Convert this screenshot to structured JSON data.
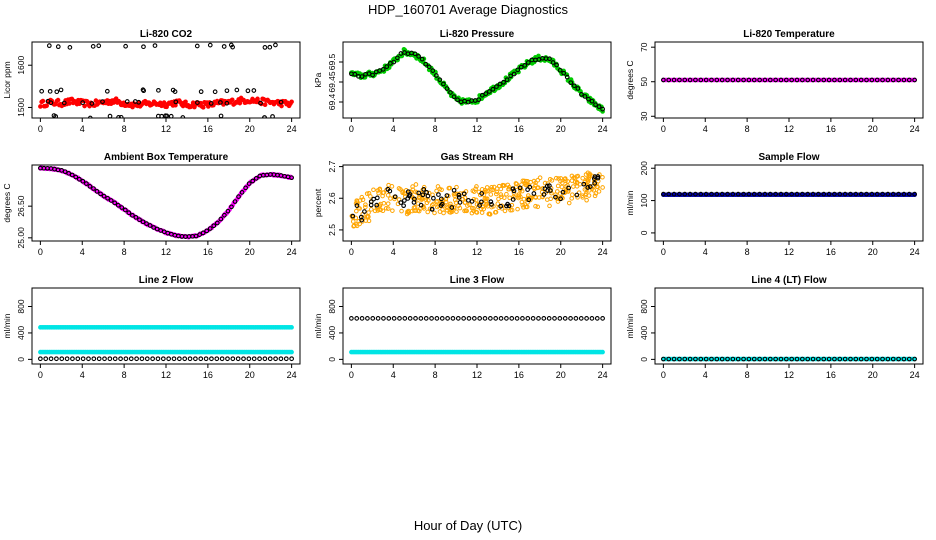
{
  "page": {
    "title": "HDP_160701  Average Diagnostics",
    "xlabel": "Hour of Day (UTC)"
  },
  "chart_data": [
    {
      "type": "scatter",
      "title": "Li-820 CO2",
      "ylabel": "Licor ppm",
      "xlim": [
        -0.8,
        24.8
      ],
      "ylim": [
        1475,
        1655
      ],
      "xticks": [
        0,
        4,
        8,
        12,
        16,
        20,
        24
      ],
      "yticks": [
        1500,
        1600
      ],
      "series": [
        {
          "color": "#ff0000",
          "pattern": "band",
          "values": [
            1508,
            1512,
            1510,
            1514,
            1510,
            1508,
            1512,
            1516,
            1510,
            1506,
            1508,
            1510,
            1508,
            1512,
            1506,
            1508,
            1506,
            1510,
            1512,
            1516,
            1518,
            1514,
            1512,
            1510,
            1508
          ],
          "spread": 7
        },
        {
          "color": "#000000",
          "pattern": "clusters",
          "values": [
            1478,
            1512,
            1540,
            1645
          ]
        }
      ]
    },
    {
      "type": "scatter",
      "title": "Li-820 Pressure",
      "ylabel": "kPa",
      "xlim": [
        -0.8,
        24.8
      ],
      "ylim": [
        69.36,
        69.55
      ],
      "xticks": [
        0,
        4,
        8,
        12,
        16,
        20,
        24
      ],
      "yticks": [
        69.4,
        69.45,
        69.5
      ],
      "series": [
        {
          "color": "#00cc00",
          "pattern": "line",
          "x": [
            0,
            1,
            2,
            3,
            4,
            5,
            6,
            7,
            8,
            9,
            10,
            11,
            12,
            13,
            14,
            15,
            16,
            17,
            18,
            19,
            20,
            21,
            22,
            23,
            24
          ],
          "values": [
            69.47,
            69.465,
            69.47,
            69.48,
            69.5,
            69.525,
            69.52,
            69.5,
            69.47,
            69.435,
            69.405,
            69.4,
            69.405,
            69.425,
            69.44,
            69.46,
            69.48,
            69.5,
            69.51,
            69.505,
            69.48,
            69.45,
            69.42,
            69.4,
            69.38
          ],
          "spread": 0.007
        },
        {
          "color": "#000000",
          "pattern": "line",
          "x": [
            0,
            1,
            2,
            3,
            4,
            5,
            6,
            7,
            8,
            9,
            10,
            11,
            12,
            13,
            14,
            15,
            16,
            17,
            18,
            19,
            20,
            21,
            22,
            23,
            24
          ],
          "values": [
            69.47,
            69.465,
            69.47,
            69.48,
            69.5,
            69.525,
            69.52,
            69.5,
            69.47,
            69.435,
            69.405,
            69.4,
            69.405,
            69.425,
            69.44,
            69.46,
            69.48,
            69.5,
            69.51,
            69.505,
            69.48,
            69.45,
            69.42,
            69.4,
            69.38
          ],
          "spread": 0.003
        }
      ]
    },
    {
      "type": "scatter",
      "title": "Li-820 Temperature",
      "ylabel": "degrees C",
      "xlim": [
        -0.8,
        24.8
      ],
      "ylim": [
        29,
        73
      ],
      "xticks": [
        0,
        4,
        8,
        12,
        16,
        20,
        24
      ],
      "yticks": [
        30,
        50,
        70
      ],
      "series": [
        {
          "color": "#ff00ff",
          "pattern": "constant",
          "values": [
            51
          ]
        },
        {
          "color": "#000000",
          "pattern": "constant",
          "values": [
            51
          ]
        }
      ]
    },
    {
      "type": "scatter",
      "title": "Ambient Box Temperature",
      "ylabel": "degrees C",
      "xlim": [
        -0.8,
        24.8
      ],
      "ylim": [
        24.85,
        28.45
      ],
      "xticks": [
        0,
        4,
        8,
        12,
        16,
        20,
        24
      ],
      "yticks": [
        25.0,
        26.5
      ],
      "series": [
        {
          "color": "#ff00ff",
          "pattern": "line",
          "x": [
            0,
            1,
            2,
            3,
            4,
            5,
            6,
            7,
            8,
            9,
            10,
            11,
            12,
            13,
            14,
            15,
            16,
            17,
            18,
            19,
            20,
            21,
            22,
            23,
            24
          ],
          "values": [
            28.3,
            28.28,
            28.2,
            28.0,
            27.7,
            27.35,
            27.0,
            26.7,
            26.35,
            26.0,
            25.7,
            25.45,
            25.25,
            25.1,
            25.05,
            25.1,
            25.35,
            25.75,
            26.3,
            27.0,
            27.6,
            27.95,
            28.0,
            27.95,
            27.85
          ],
          "spread": 0.03
        },
        {
          "color": "#000000",
          "pattern": "line",
          "x": [
            0,
            1,
            2,
            3,
            4,
            5,
            6,
            7,
            8,
            9,
            10,
            11,
            12,
            13,
            14,
            15,
            16,
            17,
            18,
            19,
            20,
            21,
            22,
            23,
            24
          ],
          "values": [
            28.3,
            28.28,
            28.2,
            28.0,
            27.7,
            27.35,
            27.0,
            26.7,
            26.35,
            26.0,
            25.7,
            25.45,
            25.25,
            25.1,
            25.05,
            25.1,
            25.35,
            25.75,
            26.3,
            27.0,
            27.6,
            27.95,
            28.0,
            27.95,
            27.85
          ],
          "spread": 0.01
        }
      ]
    },
    {
      "type": "scatter",
      "title": "Gas Stream RH",
      "ylabel": "percent",
      "xlim": [
        -0.8,
        24.8
      ],
      "ylim": [
        2.465,
        2.705
      ],
      "xticks": [
        0,
        4,
        8,
        12,
        16,
        20,
        24
      ],
      "yticks": [
        2.5,
        2.6,
        2.7
      ],
      "series": [
        {
          "color": "#ffa500",
          "pattern": "noise",
          "values": [
            2.54,
            2.56,
            2.58,
            2.6,
            2.6,
            2.59,
            2.6,
            2.6,
            2.59,
            2.6,
            2.6,
            2.59,
            2.6,
            2.59,
            2.6,
            2.6,
            2.61,
            2.61,
            2.62,
            2.62,
            2.62,
            2.63,
            2.63,
            2.64,
            2.64
          ],
          "spread": 0.045
        },
        {
          "color": "#000000",
          "pattern": "noise",
          "values": [
            2.54,
            2.56,
            2.58,
            2.6,
            2.6,
            2.59,
            2.6,
            2.6,
            2.59,
            2.6,
            2.6,
            2.59,
            2.6,
            2.59,
            2.6,
            2.6,
            2.61,
            2.61,
            2.62,
            2.62,
            2.62,
            2.63,
            2.63,
            2.64,
            2.64
          ],
          "spread": 0.03
        }
      ]
    },
    {
      "type": "scatter",
      "title": "Sample Flow",
      "ylabel": "ml/min",
      "xlim": [
        -0.8,
        24.8
      ],
      "ylim": [
        -25,
        210
      ],
      "xticks": [
        0,
        4,
        8,
        12,
        16,
        20,
        24
      ],
      "yticks": [
        0,
        100,
        200
      ],
      "series": [
        {
          "color": "#0000aa",
          "pattern": "constant",
          "values": [
            118
          ]
        },
        {
          "color": "#000000",
          "pattern": "constant",
          "values": [
            120
          ]
        }
      ]
    },
    {
      "type": "scatter",
      "title": "Line 2 Flow",
      "ylabel": "ml/min",
      "xlim": [
        -0.8,
        24.8
      ],
      "ylim": [
        -70,
        1080
      ],
      "xticks": [
        0,
        4,
        8,
        12,
        16,
        20,
        24
      ],
      "yticks": [
        0,
        400,
        800
      ],
      "series": [
        {
          "color": "#00e5e5",
          "pattern": "constant",
          "values": [
            485
          ]
        },
        {
          "color": "#00e5e5",
          "pattern": "constant",
          "values": [
            110
          ]
        },
        {
          "color": "#000000",
          "pattern": "constant",
          "values": [
            10
          ]
        }
      ]
    },
    {
      "type": "scatter",
      "title": "Line 3 Flow",
      "ylabel": "ml/min",
      "xlim": [
        -0.8,
        24.8
      ],
      "ylim": [
        -70,
        1080
      ],
      "xticks": [
        0,
        4,
        8,
        12,
        16,
        20,
        24
      ],
      "yticks": [
        0,
        400,
        800
      ],
      "series": [
        {
          "color": "#000000",
          "pattern": "constant",
          "values": [
            620
          ]
        },
        {
          "color": "#00e5e5",
          "pattern": "constant",
          "values": [
            110
          ]
        }
      ]
    },
    {
      "type": "scatter",
      "title": "Line 4 (LT) Flow",
      "ylabel": "ml/min",
      "xlim": [
        -0.8,
        24.8
      ],
      "ylim": [
        -70,
        1080
      ],
      "xticks": [
        0,
        4,
        8,
        12,
        16,
        20,
        24
      ],
      "yticks": [
        0,
        400,
        800
      ],
      "series": [
        {
          "color": "#00e5e5",
          "pattern": "constant",
          "values": [
            5
          ]
        },
        {
          "color": "#000000",
          "pattern": "constant",
          "values": [
            5
          ]
        }
      ]
    }
  ]
}
